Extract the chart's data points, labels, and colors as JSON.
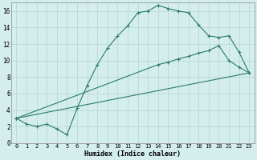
{
  "xlabel": "Humidex (Indice chaleur)",
  "background_color": "#d4eeed",
  "grid_color": "#b8d8d6",
  "line_color": "#2a7a6a",
  "xlim": [
    -0.5,
    23.5
  ],
  "ylim": [
    0,
    17
  ],
  "xticks": [
    0,
    1,
    2,
    3,
    4,
    5,
    6,
    7,
    8,
    9,
    10,
    11,
    12,
    13,
    14,
    15,
    16,
    17,
    18,
    19,
    20,
    21,
    22,
    23
  ],
  "yticks": [
    0,
    2,
    4,
    6,
    8,
    10,
    12,
    14,
    16
  ],
  "line1_x": [
    0,
    1,
    2,
    3,
    4,
    5,
    6,
    7,
    8,
    9,
    10,
    11,
    12,
    13,
    14,
    15,
    16,
    17,
    18,
    19,
    20,
    21,
    22,
    23
  ],
  "line1_y": [
    3.0,
    2.3,
    2.0,
    2.3,
    1.7,
    1.0,
    4.2,
    7.0,
    9.5,
    11.5,
    13.0,
    14.2,
    15.8,
    16.0,
    16.7,
    16.3,
    16.0,
    15.8,
    14.3,
    13.0,
    12.8,
    13.0,
    11.0,
    8.5
  ],
  "line2_x": [
    0,
    14,
    15,
    16,
    17,
    18,
    19,
    20,
    21,
    22,
    23
  ],
  "line2_y": [
    3.0,
    9.5,
    9.8,
    10.2,
    10.5,
    10.9,
    11.2,
    11.8,
    10.0,
    9.2,
    8.5
  ],
  "line3_x": [
    0,
    23
  ],
  "line3_y": [
    3.0,
    8.5
  ],
  "marker": "+"
}
